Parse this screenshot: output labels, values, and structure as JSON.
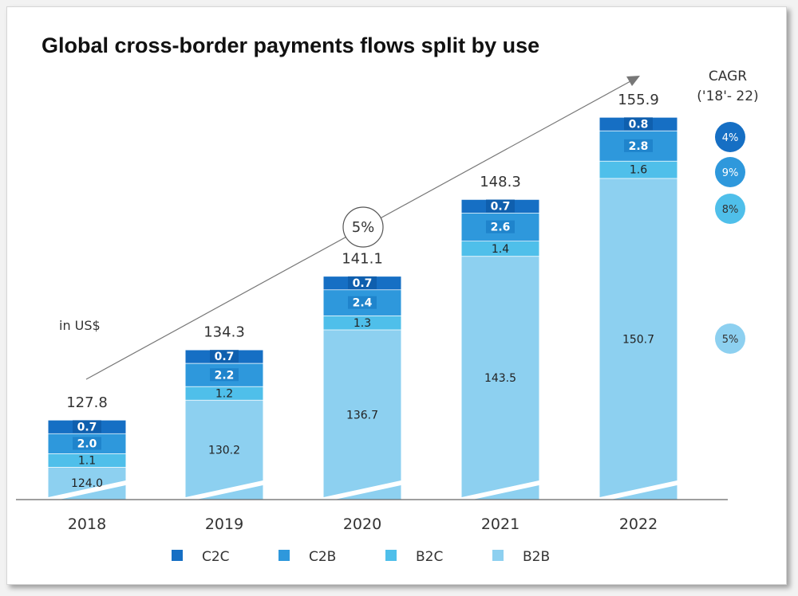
{
  "chart_data": {
    "type": "bar",
    "stacked": true,
    "title": "Global cross-border payments flows split by use",
    "unit_note": "in US$",
    "categories": [
      "2018",
      "2019",
      "2020",
      "2021",
      "2022"
    ],
    "series": [
      {
        "name": "B2B",
        "color": "#8dd0f0",
        "values": [
          124.0,
          130.2,
          136.7,
          143.5,
          150.7
        ],
        "labels": [
          "124.0",
          "130.2",
          "136.7",
          "143.5",
          "150.7"
        ]
      },
      {
        "name": "B2C",
        "color": "#4fbfea",
        "values": [
          1.1,
          1.2,
          1.3,
          1.4,
          1.6
        ],
        "labels": [
          "1.1",
          "1.2",
          "1.3",
          "1.4",
          "1.6"
        ]
      },
      {
        "name": "C2B",
        "color": "#2e98dc",
        "values": [
          2.0,
          2.2,
          2.4,
          2.6,
          2.8
        ],
        "labels": [
          "2.0",
          "2.2",
          "2.4",
          "2.6",
          "2.8"
        ]
      },
      {
        "name": "C2C",
        "color": "#166fc4",
        "values": [
          0.7,
          0.7,
          0.7,
          0.7,
          0.8
        ],
        "labels": [
          "0.7",
          "0.7",
          "0.7",
          "0.7",
          "0.8"
        ]
      }
    ],
    "totals": [
      127.8,
      134.3,
      141.1,
      148.3,
      155.9
    ],
    "totals_labels": [
      "127.8",
      "134.3",
      "141.1",
      "148.3",
      "155.9"
    ],
    "overall_growth_label": "5%",
    "cagr": {
      "title_line1": "CAGR",
      "title_line2": "('18'- 22)",
      "values": [
        {
          "series": "C2C",
          "label": "4%",
          "color": "#166fc4",
          "text_color": "#ffffff"
        },
        {
          "series": "C2B",
          "label": "9%",
          "color": "#2e98dc",
          "text_color": "#ffffff"
        },
        {
          "series": "B2C",
          "label": "8%",
          "color": "#4fbfea",
          "text_color": "#333333"
        },
        {
          "series": "B2B",
          "label": "5%",
          "color": "#8dd0f0",
          "text_color": "#333333"
        }
      ]
    },
    "legend": [
      {
        "label": "C2C",
        "color": "#166fc4"
      },
      {
        "label": "C2B",
        "color": "#2e98dc"
      },
      {
        "label": "B2C",
        "color": "#4fbfea"
      },
      {
        "label": "B2B",
        "color": "#8dd0f0"
      }
    ],
    "legend_position": "bottom",
    "axis_break": true
  }
}
